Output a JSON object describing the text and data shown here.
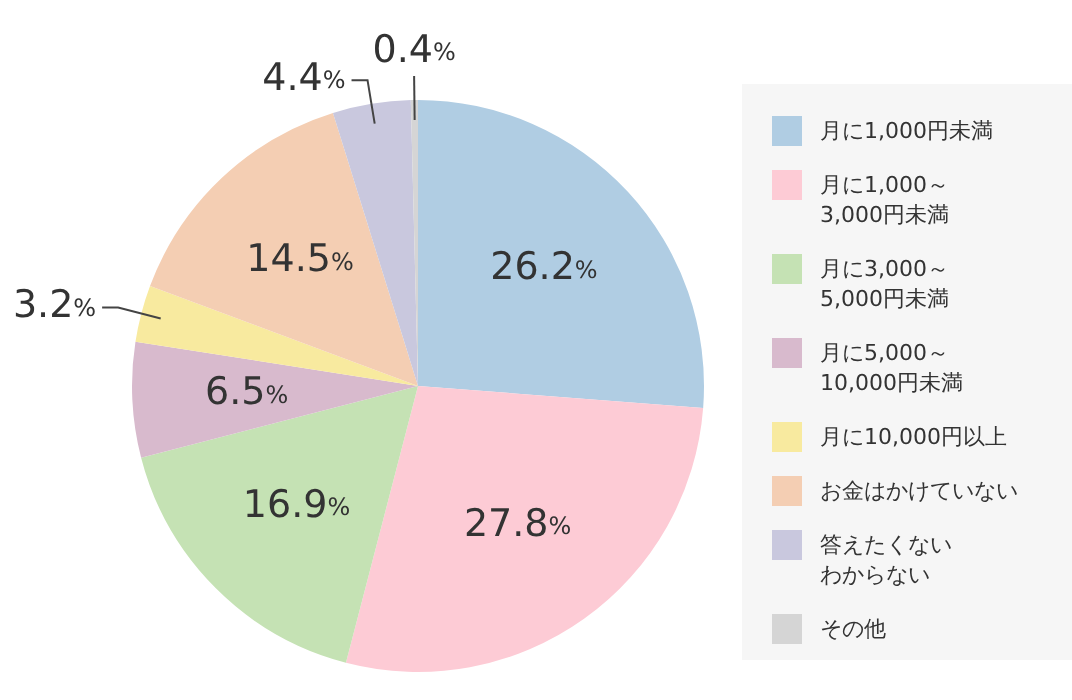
{
  "chart_data": {
    "type": "pie",
    "categories": [
      "月に1,000円未満",
      "月に1,000～3,000円未満",
      "月に3,000～5,000円未満",
      "月に5,000～10,000円未満",
      "月に10,000円以上",
      "お金はかけていない",
      "答えたくないわからない",
      "その他"
    ],
    "values": [
      26.2,
      27.8,
      16.9,
      6.5,
      3.2,
      14.5,
      4.4,
      0.4
    ],
    "value_labels": [
      "26.2%",
      "27.8%",
      "16.9%",
      "6.5%",
      "3.2%",
      "14.5%",
      "4.4%",
      "0.4%"
    ],
    "colors": [
      "#b0cde3",
      "#fdcbd5",
      "#c5e2b4",
      "#d8bacd",
      "#f8ea9f",
      "#f4ceb3",
      "#c9c8de",
      "#d5d5d5"
    ],
    "legend": "right"
  }
}
